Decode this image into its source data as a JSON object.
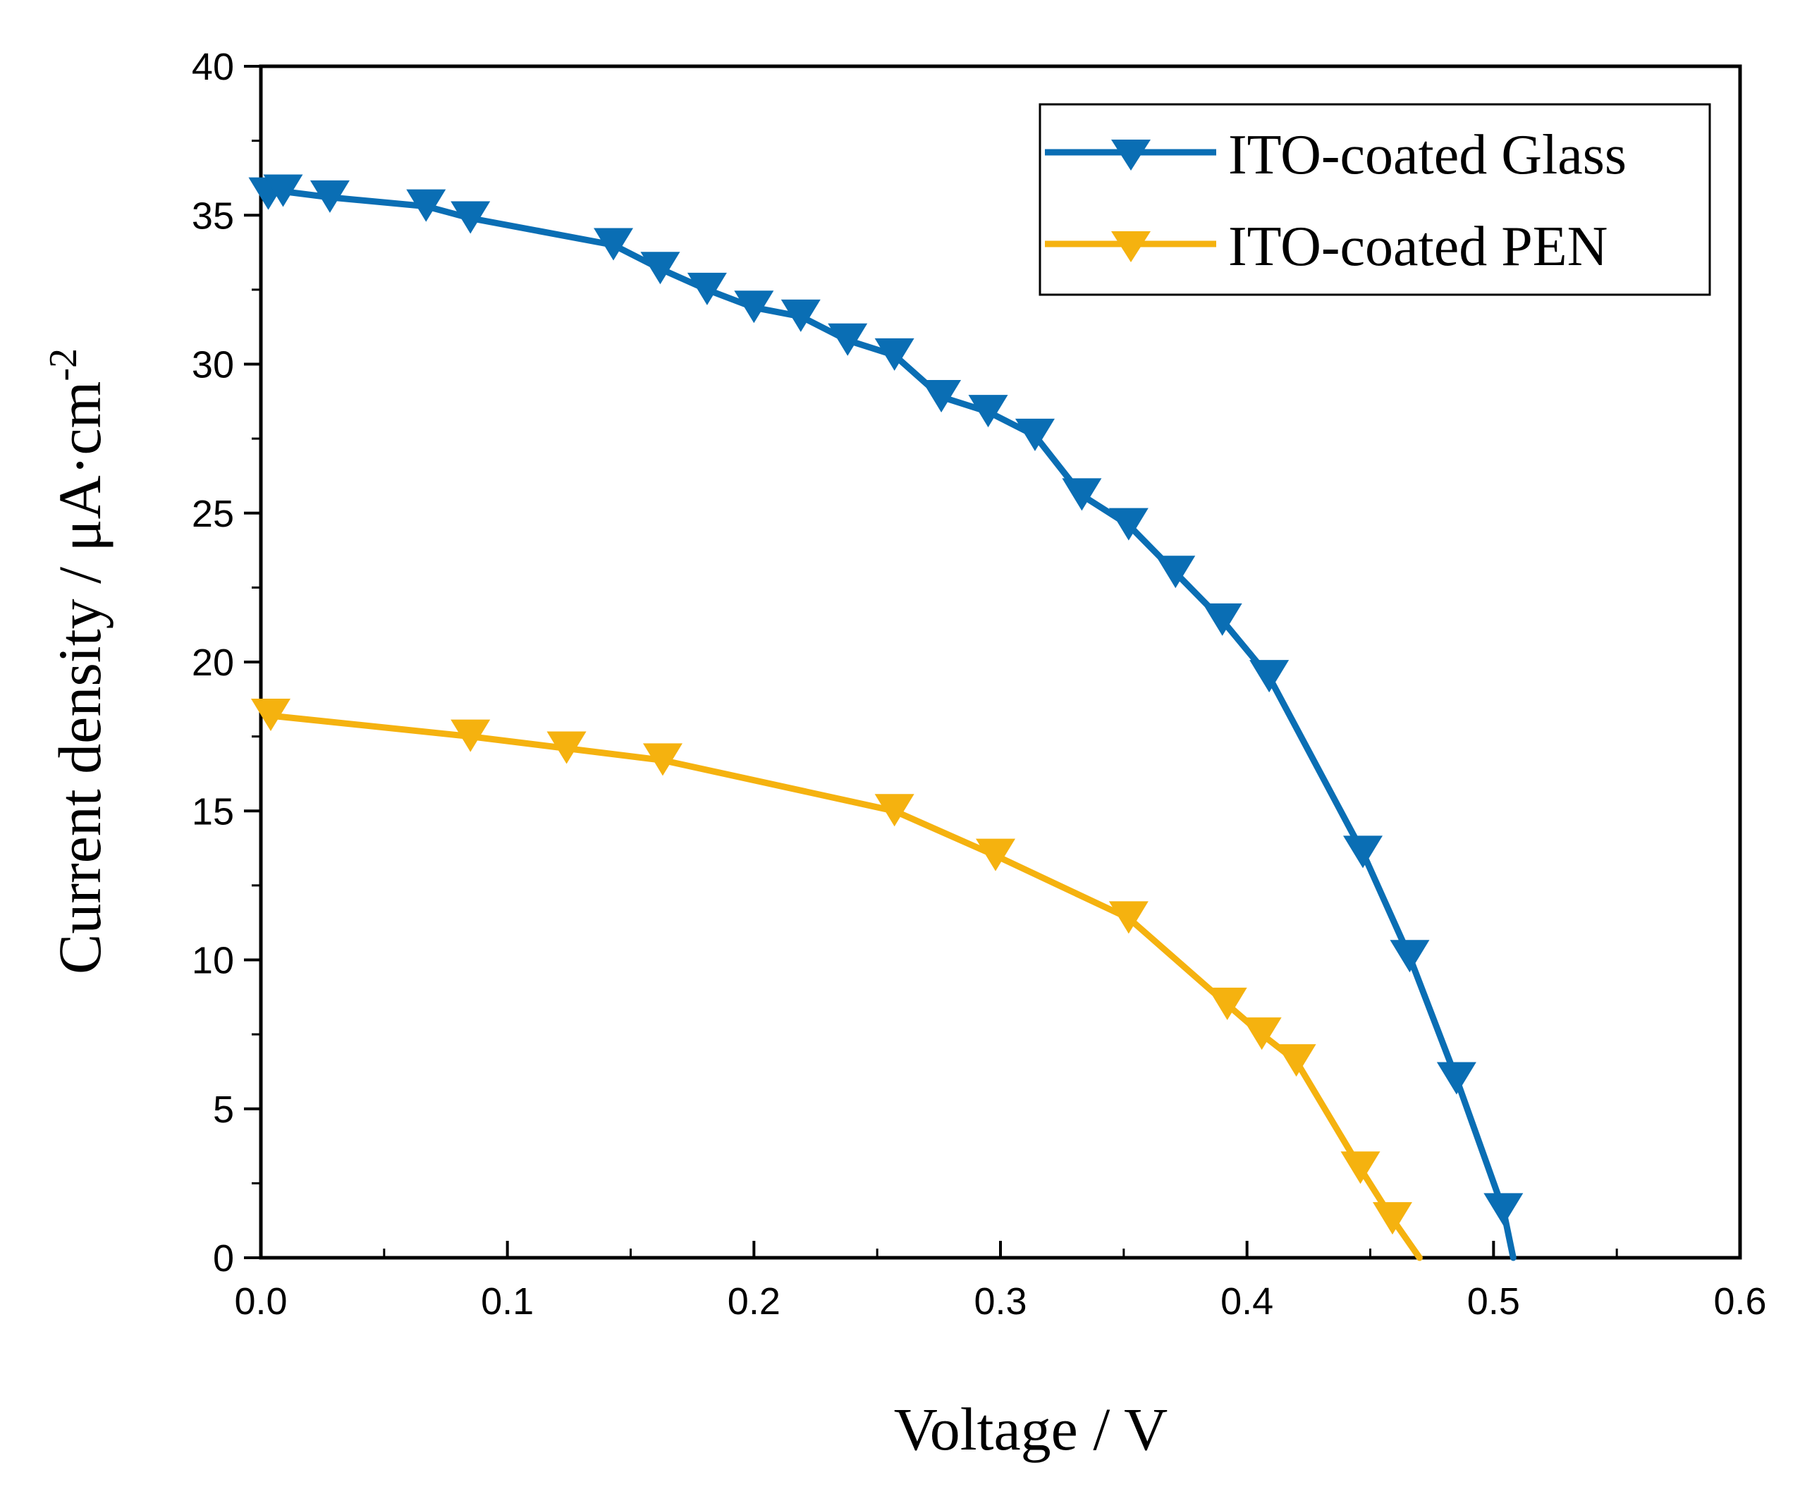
{
  "chart_data": {
    "type": "line",
    "title": "",
    "xlabel": "Voltage / V",
    "ylabel": "Current density / μA·cm",
    "ylabel_superscript": "-2",
    "xlim": [
      0,
      0.6
    ],
    "ylim": [
      0,
      40
    ],
    "xticks": [
      "0.0",
      "0.1",
      "0.2",
      "0.3",
      "0.4",
      "0.5",
      "0.6"
    ],
    "yticks": [
      "0",
      "5",
      "10",
      "15",
      "20",
      "25",
      "30",
      "35",
      "40"
    ],
    "grid": false,
    "legend_position": "top-right",
    "series": [
      {
        "name": "ITO-coated Glass",
        "color": "#0a6eb4",
        "marker": "triangle-down",
        "x": [
          0.003,
          0.009,
          0.028,
          0.067,
          0.085,
          0.143,
          0.162,
          0.181,
          0.2,
          0.219,
          0.238,
          0.257,
          0.276,
          0.295,
          0.314,
          0.333,
          0.352,
          0.371,
          0.39,
          0.409,
          0.447,
          0.466,
          0.485,
          0.504,
          0.508
        ],
        "y": [
          35.7,
          35.8,
          35.6,
          35.3,
          34.9,
          34.0,
          33.2,
          32.5,
          31.9,
          31.6,
          30.8,
          30.3,
          28.9,
          28.4,
          27.6,
          25.6,
          24.6,
          23.0,
          21.4,
          19.5,
          13.6,
          10.1,
          6.0,
          1.6,
          0.0
        ]
      },
      {
        "name": "ITO-coated PEN",
        "color": "#f5b20f",
        "marker": "triangle-down",
        "x": [
          0.004,
          0.085,
          0.124,
          0.163,
          0.257,
          0.298,
          0.352,
          0.392,
          0.406,
          0.42,
          0.446,
          0.459,
          0.47
        ],
        "y": [
          18.2,
          17.5,
          17.1,
          16.7,
          15.0,
          13.5,
          11.4,
          8.5,
          7.5,
          6.6,
          3.0,
          1.3,
          0.0
        ]
      }
    ]
  }
}
